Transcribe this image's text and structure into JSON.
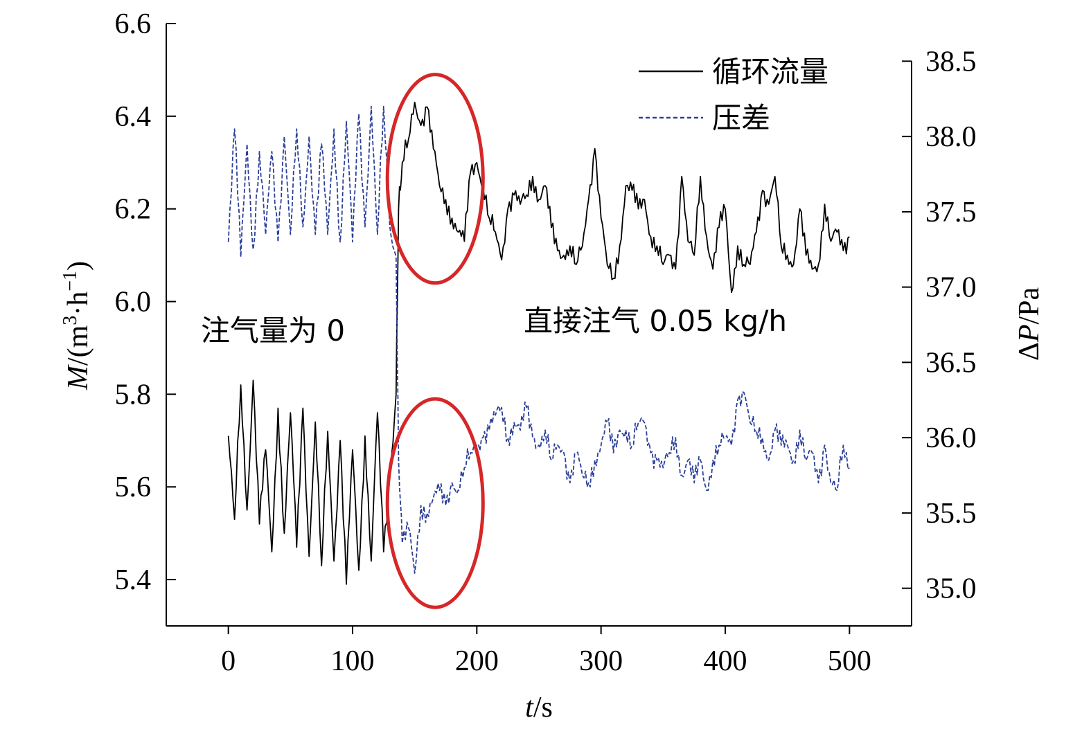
{
  "chart_data": {
    "type": "line",
    "title": "",
    "xlabel": {
      "italic": "t",
      "rest": "/s"
    },
    "ylabel_left": {
      "italic": "M",
      "rest": "/(m",
      "sup1": "3",
      "mid": "·h",
      "sup2": "−1",
      "end": ")"
    },
    "ylabel_right": {
      "pre": "Δ",
      "italic": "P",
      "rest": "/Pa"
    },
    "xlim": [
      -50,
      550
    ],
    "ylim_left": [
      5.3,
      6.6
    ],
    "ylim_right": [
      34.75,
      38.75
    ],
    "x_ticks": [
      0,
      100,
      200,
      300,
      400,
      500
    ],
    "y_left_ticks": [
      5.4,
      5.6,
      5.8,
      6.0,
      6.2,
      6.4,
      6.6
    ],
    "y_left_tick_labels": [
      "5.4",
      "5.6",
      "5.8",
      "6.0",
      "6.2",
      "6.4",
      "6.6"
    ],
    "y_right_ticks": [
      35.0,
      35.5,
      36.0,
      36.5,
      37.0,
      37.5,
      38.0,
      38.5
    ],
    "y_right_tick_labels": [
      "35.0",
      "35.5",
      "36.0",
      "36.5",
      "37.0",
      "37.5",
      "38.0",
      "38.5"
    ],
    "legend": {
      "position": "top-right",
      "entries": [
        {
          "label": "循环流量",
          "style": "solid",
          "color": "#000000"
        },
        {
          "label": "压差",
          "style": "dashed",
          "color": "#2b3f99"
        }
      ]
    },
    "annotations": [
      {
        "text": "注气量为 0",
        "x": 70,
        "y": 5.95
      },
      {
        "text": "直接注气 0.05 kg/h",
        "x": 375,
        "y": 5.95
      }
    ],
    "highlights": [
      {
        "shape": "ellipse",
        "color": "#d62728",
        "x_range": [
          128,
          205
        ],
        "y_range": [
          6.04,
          6.49
        ],
        "axis": "left"
      },
      {
        "shape": "ellipse",
        "color": "#d62728",
        "x_range": [
          128,
          205
        ],
        "y_range": [
          5.34,
          5.79
        ],
        "axis": "left"
      }
    ],
    "series": [
      {
        "name": "循环流量",
        "axis": "left",
        "style": "solid",
        "color": "#000000",
        "x": [
          0,
          5,
          10,
          15,
          20,
          25,
          30,
          35,
          40,
          45,
          50,
          55,
          60,
          65,
          70,
          75,
          80,
          85,
          90,
          95,
          100,
          105,
          110,
          115,
          120,
          125,
          130,
          135,
          137,
          140,
          145,
          150,
          155,
          160,
          165,
          170,
          175,
          180,
          185,
          190,
          195,
          200,
          205,
          210,
          215,
          220,
          225,
          230,
          235,
          240,
          245,
          250,
          255,
          260,
          265,
          270,
          275,
          280,
          285,
          290,
          295,
          300,
          305,
          310,
          315,
          320,
          325,
          330,
          335,
          340,
          345,
          350,
          355,
          360,
          365,
          370,
          375,
          380,
          385,
          390,
          395,
          400,
          405,
          410,
          415,
          420,
          425,
          430,
          435,
          440,
          445,
          450,
          455,
          460,
          465,
          470,
          475,
          480,
          485,
          490,
          495,
          500
        ],
        "y": [
          5.71,
          5.53,
          5.82,
          5.55,
          5.83,
          5.52,
          5.68,
          5.46,
          5.77,
          5.5,
          5.76,
          5.47,
          5.77,
          5.45,
          5.74,
          5.43,
          5.72,
          5.44,
          5.7,
          5.39,
          5.68,
          5.42,
          5.71,
          5.44,
          5.76,
          5.46,
          5.62,
          5.8,
          6.2,
          6.3,
          6.35,
          6.43,
          6.38,
          6.42,
          6.33,
          6.25,
          6.22,
          6.18,
          6.15,
          6.13,
          6.28,
          6.3,
          6.25,
          6.18,
          6.15,
          6.09,
          6.2,
          6.23,
          6.21,
          6.23,
          6.27,
          6.22,
          6.25,
          6.16,
          6.11,
          6.1,
          6.12,
          6.08,
          6.12,
          6.22,
          6.33,
          6.18,
          6.08,
          6.05,
          6.12,
          6.25,
          6.24,
          6.2,
          6.22,
          6.14,
          6.12,
          6.08,
          6.1,
          6.07,
          6.27,
          6.13,
          6.1,
          6.27,
          6.14,
          6.07,
          6.16,
          6.2,
          6.02,
          6.12,
          6.08,
          6.08,
          6.15,
          6.24,
          6.21,
          6.27,
          6.12,
          6.1,
          6.08,
          6.2,
          6.1,
          6.07,
          6.08,
          6.21,
          6.13,
          6.15,
          6.11,
          6.14
        ]
      },
      {
        "name": "压差",
        "axis": "right",
        "style": "dashed",
        "color": "#2b3f99",
        "x": [
          0,
          5,
          10,
          15,
          20,
          25,
          30,
          35,
          40,
          45,
          50,
          55,
          60,
          65,
          70,
          75,
          80,
          85,
          90,
          95,
          100,
          105,
          110,
          115,
          120,
          125,
          130,
          135,
          137,
          140,
          145,
          150,
          155,
          160,
          165,
          170,
          175,
          180,
          185,
          190,
          195,
          200,
          205,
          210,
          215,
          220,
          225,
          230,
          235,
          240,
          245,
          250,
          255,
          260,
          265,
          270,
          275,
          280,
          285,
          290,
          295,
          300,
          305,
          310,
          315,
          320,
          325,
          330,
          335,
          340,
          345,
          350,
          355,
          360,
          365,
          370,
          375,
          380,
          385,
          390,
          395,
          400,
          405,
          410,
          415,
          420,
          425,
          430,
          435,
          440,
          445,
          450,
          455,
          460,
          465,
          470,
          475,
          480,
          485,
          490,
          495,
          500
        ],
        "y": [
          37.3,
          38.05,
          37.2,
          37.95,
          37.25,
          37.9,
          37.35,
          37.9,
          37.3,
          38.0,
          37.35,
          38.05,
          37.4,
          38.0,
          37.35,
          37.95,
          37.35,
          38.05,
          37.3,
          38.1,
          37.3,
          38.15,
          37.4,
          38.2,
          37.35,
          38.2,
          37.4,
          37.2,
          35.85,
          35.3,
          35.4,
          35.1,
          35.55,
          35.5,
          35.6,
          35.65,
          35.55,
          35.7,
          35.65,
          35.8,
          35.9,
          35.95,
          36.0,
          36.05,
          36.15,
          36.2,
          36.0,
          36.1,
          36.05,
          36.2,
          36.0,
          35.95,
          36.05,
          35.85,
          35.95,
          35.9,
          35.7,
          35.9,
          35.75,
          35.7,
          35.85,
          35.95,
          36.1,
          35.9,
          36.05,
          36.05,
          35.95,
          36.1,
          36.1,
          35.9,
          35.85,
          35.8,
          35.9,
          36.0,
          35.75,
          35.85,
          35.7,
          35.85,
          35.65,
          35.85,
          35.95,
          36.0,
          35.95,
          36.25,
          36.3,
          36.1,
          36.05,
          36.0,
          35.85,
          36.05,
          35.95,
          35.95,
          35.85,
          36.05,
          35.85,
          35.9,
          35.7,
          35.95,
          35.7,
          35.65,
          35.95,
          35.8
        ]
      }
    ]
  }
}
